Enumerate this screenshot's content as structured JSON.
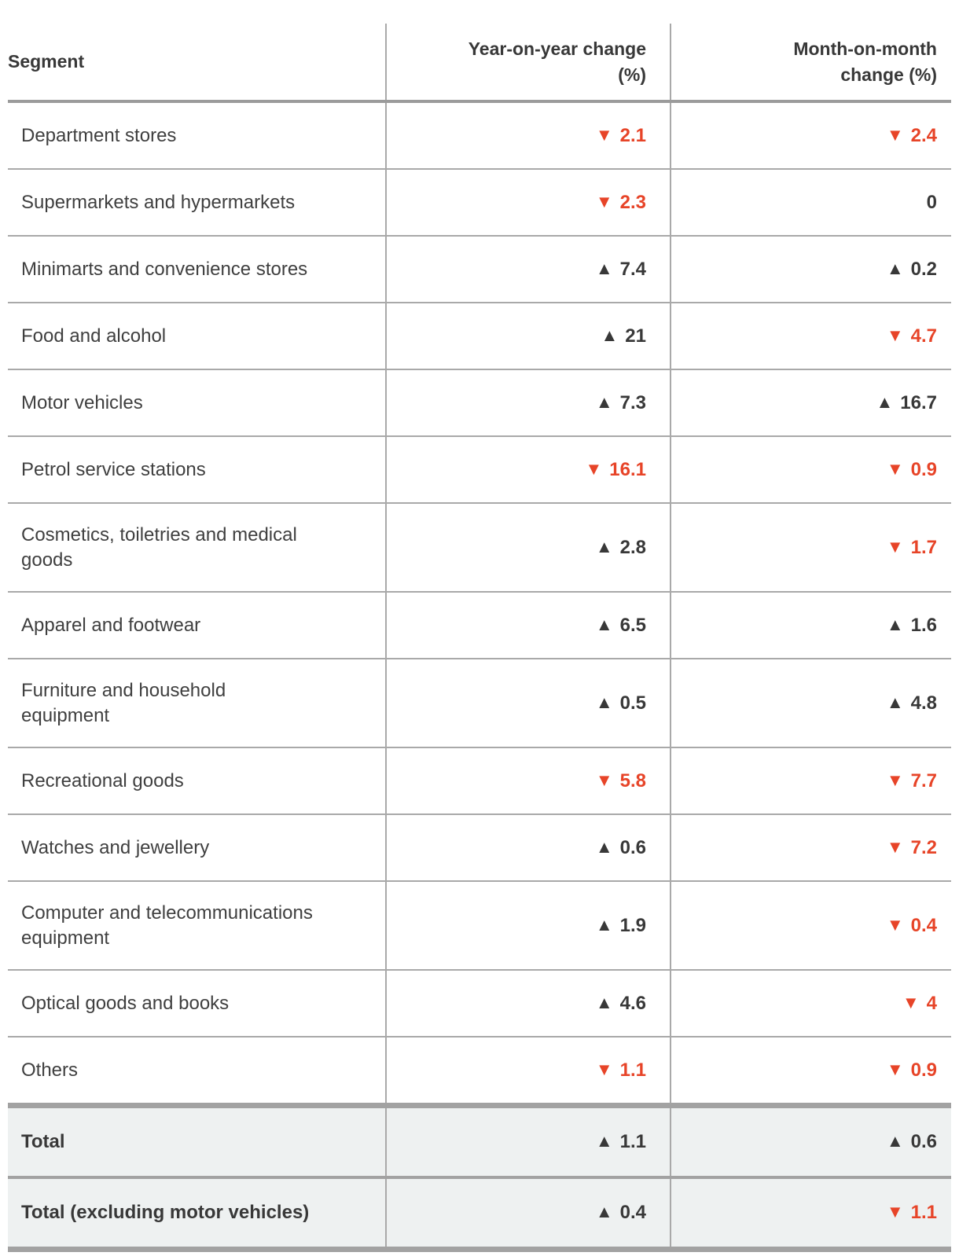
{
  "colors": {
    "negative": "#e74428",
    "dark": "#383838",
    "label": "#3f3f3f",
    "border_thin": "#a9a9a9",
    "border_mid": "#9b9b9b",
    "border_thick": "#a2a2a2",
    "total_row_bg": "#eef1f1"
  },
  "icons": {
    "up": "▲",
    "down": "▼"
  },
  "table": {
    "columns": {
      "segment": "Segment",
      "yoy": "Year-on-year change\n(%)",
      "mom": "Month-on-month\nchange (%)"
    },
    "rows": [
      {
        "segment": "Department stores",
        "yoy": {
          "dir": "down",
          "value": "2.1"
        },
        "mom": {
          "dir": "down",
          "value": "2.4"
        }
      },
      {
        "segment": "Supermarkets and hypermarkets",
        "yoy": {
          "dir": "down",
          "value": "2.3"
        },
        "mom": {
          "dir": "none",
          "value": "0"
        }
      },
      {
        "segment": "Minimarts and convenience stores",
        "yoy": {
          "dir": "up",
          "value": "7.4"
        },
        "mom": {
          "dir": "up",
          "value": "0.2"
        }
      },
      {
        "segment": "Food and alcohol",
        "yoy": {
          "dir": "up",
          "value": "21"
        },
        "mom": {
          "dir": "down",
          "value": "4.7"
        }
      },
      {
        "segment": "Motor vehicles",
        "yoy": {
          "dir": "up",
          "value": "7.3"
        },
        "mom": {
          "dir": "up",
          "value": "16.7"
        }
      },
      {
        "segment": "Petrol service stations",
        "yoy": {
          "dir": "down",
          "value": "16.1"
        },
        "mom": {
          "dir": "down",
          "value": "0.9"
        }
      },
      {
        "segment": "Cosmetics, toiletries and medical\ngoods",
        "yoy": {
          "dir": "up",
          "value": "2.8"
        },
        "mom": {
          "dir": "down",
          "value": "1.7"
        }
      },
      {
        "segment": "Apparel and footwear",
        "yoy": {
          "dir": "up",
          "value": "6.5"
        },
        "mom": {
          "dir": "up",
          "value": "1.6"
        }
      },
      {
        "segment": "Furniture and household\nequipment",
        "yoy": {
          "dir": "up",
          "value": "0.5"
        },
        "mom": {
          "dir": "up",
          "value": "4.8"
        }
      },
      {
        "segment": "Recreational goods",
        "yoy": {
          "dir": "down",
          "value": "5.8"
        },
        "mom": {
          "dir": "down",
          "value": "7.7"
        }
      },
      {
        "segment": "Watches and jewellery",
        "yoy": {
          "dir": "up",
          "value": "0.6"
        },
        "mom": {
          "dir": "down",
          "value": "7.2"
        }
      },
      {
        "segment": "Computer and telecommunications\nequipment",
        "yoy": {
          "dir": "up",
          "value": "1.9"
        },
        "mom": {
          "dir": "down",
          "value": "0.4"
        }
      },
      {
        "segment": "Optical goods and books",
        "yoy": {
          "dir": "up",
          "value": "4.6"
        },
        "mom": {
          "dir": "down",
          "value": "4"
        }
      },
      {
        "segment": "Others",
        "yoy": {
          "dir": "down",
          "value": "1.1"
        },
        "mom": {
          "dir": "down",
          "value": "0.9"
        }
      }
    ],
    "totals": [
      {
        "segment": "Total",
        "yoy": {
          "dir": "up",
          "value": "1.1"
        },
        "mom": {
          "dir": "up",
          "value": "0.6"
        }
      },
      {
        "segment": "Total (excluding motor vehicles)",
        "yoy": {
          "dir": "up",
          "value": "0.4"
        },
        "mom": {
          "dir": "down",
          "value": "1.1"
        }
      }
    ]
  }
}
